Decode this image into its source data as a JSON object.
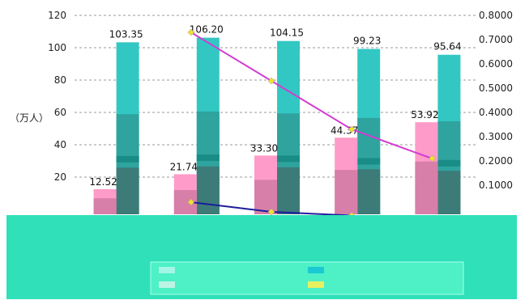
{
  "chart_data": {
    "type": "bar",
    "title": "",
    "ylabel": "（万人）",
    "y_left": {
      "min": 0,
      "max": 120,
      "step": 20,
      "ticks": [
        "20",
        "40",
        "60",
        "80",
        "100",
        "120"
      ]
    },
    "y_right": {
      "min": 0,
      "max": 0.8,
      "step": 0.1,
      "ticks": [
        "0.1000",
        "0.2000",
        "0.3000",
        "0.4000",
        "0.5000",
        "0.6000",
        "0.7000",
        "0.8000"
      ]
    },
    "grid": true,
    "categories": [
      "",
      "",
      "",
      "",
      ""
    ],
    "series": [
      {
        "kind": "bar",
        "color": "#ff9bc8",
        "values": [
          12.52,
          21.74,
          33.3,
          44.37,
          53.92
        ],
        "labels": [
          "12.52",
          "21.74",
          "33.30",
          "44.37",
          "53.92"
        ]
      },
      {
        "kind": "bar",
        "color": "#33c7c3",
        "values": [
          103.35,
          106.2,
          104.15,
          99.23,
          95.64
        ],
        "labels": [
          "103.35",
          "106.20",
          "104.15",
          "99.23",
          "95.64"
        ]
      },
      {
        "kind": "line",
        "axis": "right",
        "color": "#d23cd2",
        "marker_color": "#f0e030",
        "values": [
          null,
          0.73,
          0.53,
          0.33,
          0.21
        ]
      },
      {
        "kind": "line",
        "axis": "right",
        "color": "#1c1c9c",
        "marker_color": "#f0e030",
        "values": [
          null,
          0.03,
          -0.01,
          -0.025,
          null
        ]
      }
    ],
    "legend": "bottom",
    "legend_items": [
      "",
      "",
      "",
      ""
    ]
  },
  "colors": {
    "grid": "#9a9a9a",
    "bottom_band": "#2fe0b8"
  }
}
